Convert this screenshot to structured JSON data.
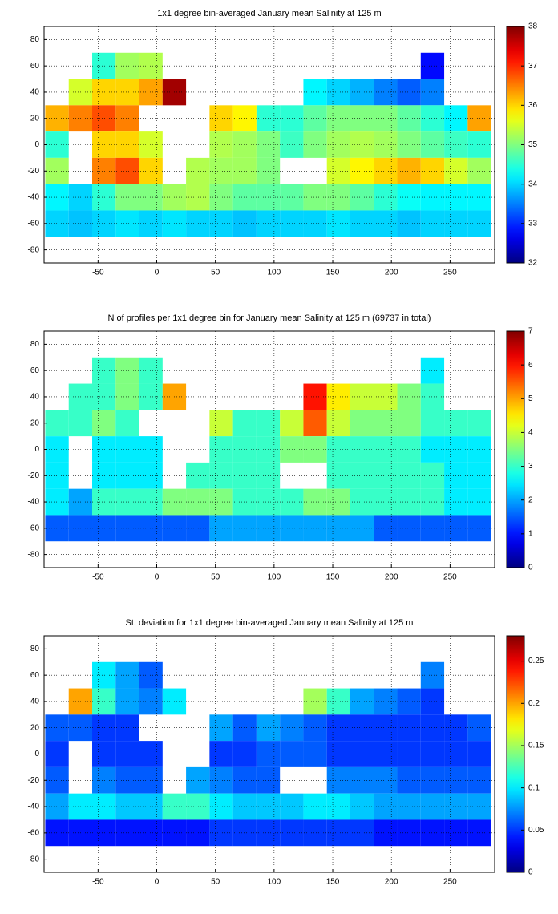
{
  "chart_data": [
    {
      "type": "heatmap",
      "title": "1x1 degree bin-averaged January mean Salinity at 125 m",
      "colormap": "jet",
      "grid": true,
      "x": [
        -85,
        -65,
        -45,
        -25,
        -5,
        15,
        35,
        55,
        75,
        95,
        115,
        135,
        155,
        175,
        195,
        215,
        235,
        255,
        275
      ],
      "y": [
        80,
        60,
        40,
        20,
        0,
        -20,
        -40,
        -60,
        -80
      ],
      "xlim": [
        -96,
        288
      ],
      "ylim": [
        -90,
        90
      ],
      "xticks": [
        -50,
        0,
        50,
        100,
        150,
        200,
        250
      ],
      "yticks": [
        -80,
        -60,
        -40,
        -20,
        0,
        20,
        40,
        60,
        80
      ],
      "clim": [
        32,
        38
      ],
      "cticks": [
        32,
        33,
        34,
        35,
        36,
        37,
        38
      ],
      "values": [
        [
          null,
          null,
          null,
          null,
          null,
          null,
          null,
          null,
          null,
          null,
          null,
          null,
          null,
          null,
          null,
          null,
          null,
          null,
          null
        ],
        [
          null,
          null,
          34.5,
          35.2,
          35.3,
          null,
          null,
          null,
          null,
          null,
          null,
          null,
          null,
          null,
          null,
          null,
          32.8,
          null,
          null
        ],
        [
          null,
          35.5,
          36,
          36,
          36.3,
          37.8,
          null,
          null,
          null,
          null,
          null,
          34.2,
          34,
          33.8,
          33.5,
          33.3,
          33.5,
          null,
          null
        ],
        [
          36.2,
          36.5,
          36.8,
          36.5,
          null,
          null,
          null,
          36,
          35.8,
          34.5,
          34.5,
          34.8,
          35,
          35,
          35,
          34.8,
          34.5,
          34.2,
          36.3
        ],
        [
          34.5,
          null,
          36,
          36,
          35.5,
          null,
          null,
          35.3,
          35.2,
          35,
          34.6,
          35,
          35.2,
          35.3,
          35.2,
          35,
          34.8,
          34.6,
          34.5
        ],
        [
          35.2,
          null,
          36.5,
          36.8,
          36,
          null,
          35.3,
          35.2,
          35.2,
          35,
          null,
          null,
          35.5,
          35.8,
          36,
          36.2,
          36,
          35.5,
          35.2
        ],
        [
          34.2,
          34,
          34.5,
          35,
          35,
          35.2,
          35.3,
          35,
          34.8,
          34.8,
          34.8,
          35,
          35,
          34.8,
          34.5,
          34.3,
          34.2,
          34.2,
          34.2
        ],
        [
          34,
          33.9,
          34,
          34.1,
          34,
          34.1,
          34,
          34,
          33.9,
          34,
          34,
          34,
          34.1,
          34,
          34,
          33.9,
          34,
          34,
          34
        ],
        [
          null,
          null,
          null,
          null,
          null,
          null,
          null,
          null,
          null,
          null,
          null,
          null,
          null,
          null,
          null,
          null,
          null,
          null,
          null
        ]
      ]
    },
    {
      "type": "heatmap",
      "title": "N of profiles per 1x1 degree bin for January mean Salinity at 125 m (69737 in total)",
      "colormap": "jet",
      "grid": true,
      "x": [
        -85,
        -65,
        -45,
        -25,
        -5,
        15,
        35,
        55,
        75,
        95,
        115,
        135,
        155,
        175,
        195,
        215,
        235,
        255,
        275
      ],
      "y": [
        80,
        60,
        40,
        20,
        0,
        -20,
        -40,
        -60,
        -80
      ],
      "xlim": [
        -96,
        288
      ],
      "ylim": [
        -90,
        90
      ],
      "xticks": [
        -50,
        0,
        50,
        100,
        150,
        200,
        250
      ],
      "yticks": [
        -80,
        -60,
        -40,
        -20,
        0,
        20,
        40,
        60,
        80
      ],
      "clim": [
        0,
        7
      ],
      "cticks": [
        0,
        1,
        2,
        3,
        4,
        5,
        6,
        7
      ],
      "values": [
        [
          null,
          null,
          null,
          null,
          null,
          null,
          null,
          null,
          null,
          null,
          null,
          null,
          null,
          null,
          null,
          null,
          null,
          null,
          null
        ],
        [
          null,
          null,
          3,
          3.5,
          3,
          null,
          null,
          null,
          null,
          null,
          null,
          null,
          null,
          null,
          null,
          null,
          2.5,
          null,
          null
        ],
        [
          null,
          3,
          3,
          3.5,
          3,
          5,
          null,
          null,
          null,
          null,
          null,
          6,
          4.5,
          4,
          4,
          3.5,
          3,
          null,
          null
        ],
        [
          3,
          3,
          3.5,
          3,
          null,
          null,
          null,
          4,
          3,
          3,
          4,
          5.5,
          4,
          3.5,
          3.5,
          3.5,
          3,
          3,
          3
        ],
        [
          2.5,
          null,
          2.5,
          2.5,
          2.5,
          null,
          null,
          3,
          3,
          3,
          3.5,
          3.5,
          3,
          3,
          3,
          3,
          2.5,
          2.5,
          2.5
        ],
        [
          2.5,
          null,
          2.5,
          2.5,
          2.5,
          null,
          3,
          3,
          3,
          3,
          null,
          null,
          3,
          3,
          3,
          3,
          3,
          2.5,
          2.5
        ],
        [
          2.5,
          2,
          3,
          3,
          3,
          3.5,
          3.5,
          3.5,
          3,
          3,
          3,
          3.5,
          3.5,
          3,
          3,
          3,
          3,
          2.5,
          2.5
        ],
        [
          1.5,
          1.5,
          1.5,
          1.5,
          1.5,
          1.5,
          1.5,
          2,
          2,
          2,
          2,
          2,
          2,
          2,
          1.5,
          1.5,
          1.5,
          1.5,
          1.5
        ],
        [
          null,
          null,
          null,
          null,
          null,
          null,
          null,
          null,
          null,
          null,
          null,
          null,
          null,
          null,
          null,
          null,
          null,
          null,
          null
        ]
      ]
    },
    {
      "type": "heatmap",
      "title": "St. deviation for 1x1 degree bin-averaged January mean Salinity at 125 m",
      "colormap": "jet",
      "grid": true,
      "x": [
        -85,
        -65,
        -45,
        -25,
        -5,
        15,
        35,
        55,
        75,
        95,
        115,
        135,
        155,
        175,
        195,
        215,
        235,
        255,
        275
      ],
      "y": [
        80,
        60,
        40,
        20,
        0,
        -20,
        -40,
        -60,
        -80
      ],
      "xlim": [
        -96,
        288
      ],
      "ylim": [
        -90,
        90
      ],
      "xticks": [
        -50,
        0,
        50,
        100,
        150,
        200,
        250
      ],
      "yticks": [
        -80,
        -60,
        -40,
        -20,
        0,
        20,
        40,
        60,
        80
      ],
      "clim": [
        0,
        0.28
      ],
      "cticks": [
        0,
        0.05,
        0.1,
        0.15,
        0.2,
        0.25
      ],
      "values": [
        [
          null,
          null,
          null,
          null,
          null,
          null,
          null,
          null,
          null,
          null,
          null,
          null,
          null,
          null,
          null,
          null,
          null,
          null,
          null
        ],
        [
          null,
          null,
          0.1,
          0.08,
          0.06,
          null,
          null,
          null,
          null,
          null,
          null,
          null,
          null,
          null,
          null,
          null,
          0.07,
          null,
          null
        ],
        [
          null,
          0.2,
          0.12,
          0.08,
          0.07,
          0.1,
          null,
          null,
          null,
          null,
          null,
          0.15,
          0.12,
          0.08,
          0.07,
          0.06,
          0.05,
          null,
          null
        ],
        [
          0.06,
          0.06,
          0.05,
          0.05,
          null,
          null,
          null,
          0.08,
          0.06,
          0.08,
          0.07,
          0.06,
          0.05,
          0.05,
          0.05,
          0.05,
          0.05,
          0.05,
          0.06
        ],
        [
          0.05,
          null,
          0.05,
          0.05,
          0.05,
          null,
          null,
          0.05,
          0.05,
          0.06,
          0.06,
          0.06,
          0.05,
          0.05,
          0.05,
          0.05,
          0.05,
          0.05,
          0.05
        ],
        [
          0.06,
          null,
          0.07,
          0.06,
          0.06,
          null,
          0.08,
          0.07,
          0.06,
          0.06,
          null,
          null,
          0.07,
          0.07,
          0.07,
          0.06,
          0.06,
          0.06,
          0.06
        ],
        [
          0.08,
          0.1,
          0.1,
          0.09,
          0.09,
          0.12,
          0.12,
          0.1,
          0.09,
          0.09,
          0.09,
          0.1,
          0.1,
          0.09,
          0.08,
          0.08,
          0.08,
          0.08,
          0.08
        ],
        [
          0.04,
          0.04,
          0.04,
          0.04,
          0.04,
          0.04,
          0.04,
          0.05,
          0.05,
          0.05,
          0.05,
          0.05,
          0.05,
          0.05,
          0.04,
          0.04,
          0.04,
          0.04,
          0.04
        ],
        [
          null,
          null,
          null,
          null,
          null,
          null,
          null,
          null,
          null,
          null,
          null,
          null,
          null,
          null,
          null,
          null,
          null,
          null,
          null
        ]
      ]
    }
  ]
}
